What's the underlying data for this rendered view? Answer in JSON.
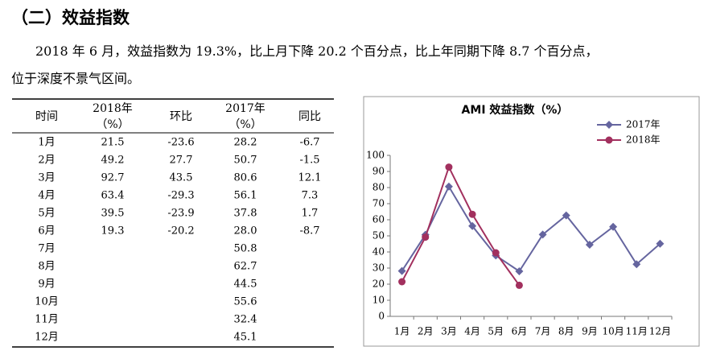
{
  "header": {
    "title": "（二）效益指数"
  },
  "paragraph": {
    "lines": [
      "2018 年 6 月，效益指数为 19.3%，比上月下降 20.2 个百分点，比上年同期下降 8.7 个百分点，",
      "位于深度不景气区间。"
    ]
  },
  "table": {
    "header": [
      [
        "时间"
      ],
      [
        "2018年",
        "（%）"
      ],
      [
        "环比"
      ],
      [
        "2017年",
        "（%）"
      ],
      [
        "同比"
      ]
    ],
    "rows": [
      [
        "1月",
        "21.5",
        "-23.6",
        "28.2",
        "-6.7"
      ],
      [
        "2月",
        "49.2",
        "27.7",
        "50.7",
        "-1.5"
      ],
      [
        "3月",
        "92.7",
        "43.5",
        "80.6",
        "12.1"
      ],
      [
        "4月",
        "63.4",
        "-29.3",
        "56.1",
        "7.3"
      ],
      [
        "5月",
        "39.5",
        "-23.9",
        "37.8",
        "1.7"
      ],
      [
        "6月",
        "19.3",
        "-20.2",
        "28.0",
        "-8.7"
      ],
      [
        "7月",
        null,
        null,
        "50.8",
        null
      ],
      [
        "8月",
        null,
        null,
        "62.7",
        null
      ],
      [
        "9月",
        null,
        null,
        "44.5",
        null
      ],
      [
        "10月",
        null,
        null,
        "55.6",
        null
      ],
      [
        "11月",
        null,
        null,
        "32.4",
        null
      ],
      [
        "12月",
        null,
        null,
        "45.1",
        null
      ]
    ]
  },
  "chart_data": {
    "type": "line",
    "title": "AMI 效益指数（%）",
    "categories": [
      "1月",
      "2月",
      "3月",
      "4月",
      "5月",
      "6月",
      "7月",
      "8月",
      "9月",
      "10月",
      "11月",
      "12月"
    ],
    "series": [
      {
        "name": "2017年",
        "color": "#65659f",
        "marker": "diamond",
        "values": [
          28.2,
          50.7,
          80.6,
          56.1,
          37.8,
          28.0,
          50.8,
          62.7,
          44.5,
          55.6,
          32.4,
          45.1
        ]
      },
      {
        "name": "2018年",
        "color": "#a2305e",
        "marker": "circle",
        "values": [
          21.5,
          49.2,
          92.7,
          63.4,
          39.5,
          19.3,
          null,
          null,
          null,
          null,
          null,
          null
        ]
      }
    ],
    "ylim": [
      0,
      100
    ],
    "yticks": [
      0,
      10,
      20,
      30,
      40,
      50,
      60,
      70,
      80,
      90,
      100
    ],
    "legend": "top-right"
  }
}
